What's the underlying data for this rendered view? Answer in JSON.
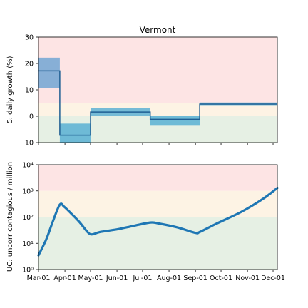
{
  "chart_data": [
    {
      "type": "line",
      "title": "Vermont",
      "ylabel": "δ: daily growth (%)",
      "xlabel": "",
      "ylim": [
        -10,
        30
      ],
      "yticks": [
        -10,
        0,
        10,
        20,
        30
      ],
      "x_range": [
        "2020-03-01",
        "2020-12-06"
      ],
      "xticks": [
        "Mar-01",
        "Apr-01",
        "May-01",
        "Jun-01",
        "Jul-01",
        "Aug-01",
        "Sep-01",
        "Oct-01",
        "Nov-01",
        "Dec-01"
      ],
      "x_tick_labels_shown": false,
      "zones": [
        {
          "from": 5,
          "to": 30,
          "color": "#fde4e4"
        },
        {
          "from": 0,
          "to": 5,
          "color": "#fdf3e4"
        },
        {
          "from": -10,
          "to": 0,
          "color": "#e6f0e4"
        }
      ],
      "segments": [
        {
          "start": "2020-03-01",
          "end": "2020-03-26",
          "value": 17.2,
          "low": 10.8,
          "high": 22.2
        },
        {
          "start": "2020-03-26",
          "end": "2020-05-01",
          "value": -7.2,
          "low": -10.0,
          "high": -2.8
        },
        {
          "start": "2020-05-01",
          "end": "2020-07-10",
          "value": 1.6,
          "low": 0.2,
          "high": 3.0
        },
        {
          "start": "2020-07-10",
          "end": "2020-09-06",
          "value": -1.2,
          "low": -3.6,
          "high": 0.0
        },
        {
          "start": "2020-09-06",
          "end": "2020-12-06",
          "value": 4.6,
          "low": 4.2,
          "high": 5.2
        }
      ],
      "line_color": "#1f5f93",
      "band_colors": [
        "#5f9ed1",
        "#3ba3d0"
      ]
    },
    {
      "type": "line",
      "title": "",
      "ylabel": "UC: uncorr contagious / million",
      "xlabel": "",
      "yscale": "log",
      "ylim": [
        1,
        10000
      ],
      "yticks": [
        1,
        10,
        100,
        1000,
        10000
      ],
      "ytick_labels": [
        "10⁰",
        "10¹",
        "10²",
        "10³",
        "10⁴"
      ],
      "x_range": [
        "2020-03-01",
        "2020-12-06"
      ],
      "xticks": [
        "Mar-01",
        "Apr-01",
        "May-01",
        "Jun-01",
        "Jul-01",
        "Aug-01",
        "Sep-01",
        "Oct-01",
        "Nov-01",
        "Dec-01"
      ],
      "zones": [
        {
          "from": 1000,
          "to": 10000,
          "color": "#fde4e4"
        },
        {
          "from": 100,
          "to": 1000,
          "color": "#fdf3e4"
        },
        {
          "from": 1,
          "to": 100,
          "color": "#e6f0e4"
        }
      ],
      "series": [
        {
          "x": [
            "2020-03-01",
            "2020-03-10",
            "2020-03-18",
            "2020-03-26",
            "2020-03-31",
            "2020-04-08",
            "2020-04-18",
            "2020-04-28",
            "2020-05-03",
            "2020-05-12",
            "2020-06-01",
            "2020-06-20",
            "2020-07-10",
            "2020-07-20",
            "2020-08-10",
            "2020-09-01",
            "2020-09-06",
            "2020-09-25",
            "2020-10-25",
            "2020-11-20",
            "2020-12-06"
          ],
          "y": [
            3.5,
            14,
            70,
            300,
            250,
            140,
            65,
            26,
            22,
            27,
            34,
            46,
            62,
            57,
            41,
            25,
            27,
            55,
            160,
            520,
            1300
          ]
        }
      ],
      "line_color": "#1f77b4"
    }
  ]
}
